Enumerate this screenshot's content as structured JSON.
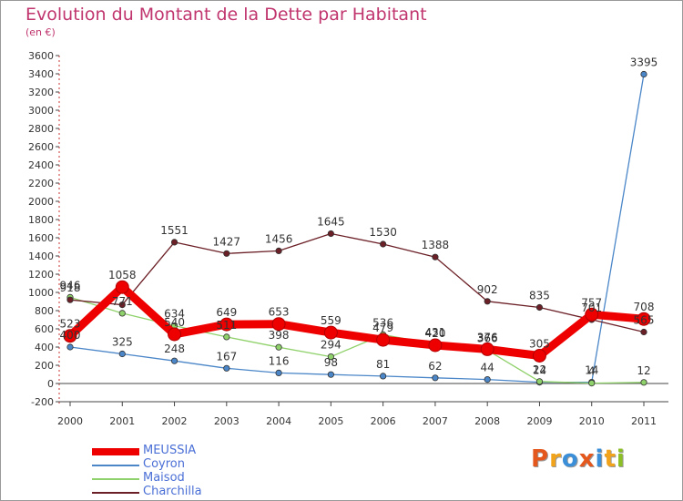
{
  "title": "Evolution du Montant de la Dette par Habitant",
  "subtitle": "(en €)",
  "logo": {
    "text": "Proxiti",
    "colors": [
      "#e4571d",
      "#f1a31c",
      "#3a8fd8",
      "#e4571d",
      "#3a8fd8",
      "#f1a31c",
      "#8cbf26"
    ]
  },
  "chart_data": {
    "type": "line",
    "title": "Evolution du Montant de la Dette par Habitant",
    "subtitle": "(en €)",
    "x": [
      "2000",
      "2001",
      "2002",
      "2003",
      "2004",
      "2005",
      "2006",
      "2007",
      "2008",
      "2009",
      "2010",
      "2011"
    ],
    "ylim": [
      -200,
      3600
    ],
    "yticks": [
      -200,
      0,
      200,
      400,
      600,
      800,
      1000,
      1200,
      1400,
      1600,
      1800,
      2000,
      2200,
      2400,
      2600,
      2800,
      3000,
      3200,
      3400,
      3600
    ],
    "grid": false,
    "legend_position": "bottom-left",
    "series": [
      {
        "name": "MEUSSIA",
        "color": "#ee0000",
        "values": [
          523,
          1058,
          540,
          649,
          653,
          559,
          479,
          420,
          376,
          305,
          757,
          708
        ]
      },
      {
        "name": "Coyron",
        "color": "#4a86c8",
        "values": [
          400,
          325,
          248,
          167,
          116,
          98,
          81,
          62,
          44,
          14,
          14,
          3395
        ]
      },
      {
        "name": "Maisod",
        "color": "#8fd16a",
        "values": [
          946,
          771,
          634,
          511,
          398,
          294,
          536,
          431,
          366,
          22,
          4,
          12
        ]
      },
      {
        "name": "Charchilla",
        "color": "#6b1f26",
        "values": [
          918,
          864,
          1551,
          1427,
          1456,
          1645,
          1530,
          1388,
          902,
          835,
          701,
          565
        ]
      }
    ],
    "data_labels": {
      "MEUSSIA": [
        "523",
        "1058",
        "540",
        "649",
        "653",
        "559",
        "479",
        "420",
        "376",
        "305",
        "757",
        "708"
      ],
      "Coyron": [
        "400",
        "325",
        "248",
        "167",
        "116",
        "98",
        "81",
        "62",
        "44",
        "14",
        "14",
        "3395"
      ],
      "Maisod": [
        "946",
        "771",
        "634",
        "511",
        "398",
        "294",
        "536",
        "431",
        "366",
        "22",
        "4",
        "12"
      ],
      "Charchilla": [
        "918",
        "",
        "1551",
        "1427",
        "1456",
        "1645",
        "1530",
        "1388",
        "902",
        "835",
        "701",
        "565"
      ]
    }
  }
}
